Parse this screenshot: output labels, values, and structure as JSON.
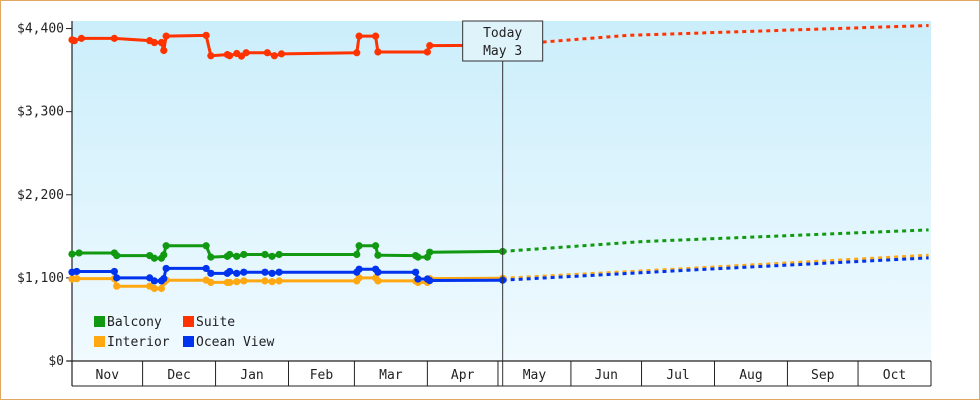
{
  "chart_data": {
    "type": "line",
    "title": "",
    "xlabel": "",
    "ylabel": "",
    "y_ticks": [
      {
        "label": "$0",
        "value": 0
      },
      {
        "label": "$1,100",
        "value": 1100
      },
      {
        "label": "$2,200",
        "value": 2200
      },
      {
        "label": "$3,300",
        "value": 3300
      },
      {
        "label": "$4,400",
        "value": 4400
      }
    ],
    "ylim": [
      0,
      4500
    ],
    "x_domain": [
      "Nov 1",
      "Oct 31"
    ],
    "months": [
      {
        "label": "Nov",
        "start": "Nov 1",
        "end": "Nov 30"
      },
      {
        "label": "Dec",
        "start": "Dec 1",
        "end": "Dec 31"
      },
      {
        "label": "Jan",
        "start": "Jan 1",
        "end": "Jan 31"
      },
      {
        "label": "Feb",
        "start": "Feb 1",
        "end": "Feb 28"
      },
      {
        "label": "Mar",
        "start": "Mar 1",
        "end": "Mar 31"
      },
      {
        "label": "Apr",
        "start": "Apr 1",
        "end": "Apr 30"
      },
      {
        "label": "May",
        "start": "May 1",
        "end": "May 31"
      },
      {
        "label": "Jun",
        "start": "Jun 1",
        "end": "Jun 30"
      },
      {
        "label": "Jul",
        "start": "Jul 1",
        "end": "Jul 31"
      },
      {
        "label": "Aug",
        "start": "Aug 1",
        "end": "Aug 31"
      },
      {
        "label": "Sep",
        "start": "Sep 1",
        "end": "Sep 30"
      },
      {
        "label": "Oct",
        "start": "Oct 1",
        "end": "Oct 31"
      }
    ],
    "today": {
      "line1": "Today",
      "line2": "May 3",
      "date": "May 3"
    },
    "grid": false,
    "legend_position": "bottom-left",
    "series": [
      {
        "name": "Suite",
        "color": "#ff3300",
        "history": [
          [
            "Nov 1",
            4250
          ],
          [
            "Nov 2",
            4240
          ],
          [
            "Nov 5",
            4270
          ],
          [
            "Nov 19",
            4270
          ],
          [
            "Dec 4",
            4240
          ],
          [
            "Dec 6",
            4215
          ],
          [
            "Dec 9",
            4215
          ],
          [
            "Dec 10",
            4110
          ],
          [
            "Dec 11",
            4300
          ],
          [
            "Dec 28",
            4310
          ],
          [
            "Dec 30",
            4040
          ],
          [
            "Jan 6",
            4055
          ],
          [
            "Jan 7",
            4040
          ],
          [
            "Jan 10",
            4070
          ],
          [
            "Jan 12",
            4035
          ],
          [
            "Jan 14",
            4080
          ],
          [
            "Jan 23",
            4080
          ],
          [
            "Jan 26",
            4040
          ],
          [
            "Jan 29",
            4065
          ],
          [
            "Mar 2",
            4080
          ],
          [
            "Mar 3",
            4300
          ],
          [
            "Mar 10",
            4300
          ],
          [
            "Mar 11",
            4090
          ],
          [
            "Apr 1",
            4090
          ],
          [
            "Apr 2",
            4175
          ],
          [
            "May 3",
            4180
          ]
        ],
        "forecast": [
          [
            "May 3",
            4180
          ],
          [
            "Jun 25",
            4310
          ],
          [
            "Oct 31",
            4440
          ]
        ]
      },
      {
        "name": "Balcony",
        "color": "#119911",
        "history": [
          [
            "Nov 1",
            1415
          ],
          [
            "Nov 4",
            1430
          ],
          [
            "Nov 19",
            1430
          ],
          [
            "Nov 20",
            1395
          ],
          [
            "Dec 4",
            1395
          ],
          [
            "Dec 6",
            1360
          ],
          [
            "Dec 9",
            1360
          ],
          [
            "Dec 10",
            1405
          ],
          [
            "Dec 11",
            1525
          ],
          [
            "Dec 28",
            1525
          ],
          [
            "Dec 30",
            1375
          ],
          [
            "Jan 6",
            1385
          ],
          [
            "Jan 7",
            1410
          ],
          [
            "Jan 10",
            1385
          ],
          [
            "Jan 13",
            1410
          ],
          [
            "Jan 22",
            1410
          ],
          [
            "Jan 25",
            1385
          ],
          [
            "Jan 28",
            1410
          ],
          [
            "Mar 2",
            1410
          ],
          [
            "Mar 3",
            1525
          ],
          [
            "Mar 10",
            1525
          ],
          [
            "Mar 11",
            1400
          ],
          [
            "Mar 27",
            1395
          ],
          [
            "Mar 28",
            1375
          ],
          [
            "Apr 1",
            1375
          ],
          [
            "Apr 2",
            1440
          ],
          [
            "May 3",
            1450
          ]
        ],
        "forecast": [
          [
            "May 3",
            1450
          ],
          [
            "Jul 1",
            1580
          ],
          [
            "Oct 31",
            1735
          ]
        ]
      },
      {
        "name": "Interior",
        "color": "#ffa811",
        "history": [
          [
            "Nov 1",
            1085
          ],
          [
            "Nov 3",
            1090
          ],
          [
            "Nov 19",
            1090
          ],
          [
            "Nov 20",
            990
          ],
          [
            "Dec 4",
            990
          ],
          [
            "Dec 6",
            960
          ],
          [
            "Dec 9",
            960
          ],
          [
            "Dec 10",
            1040
          ],
          [
            "Dec 11",
            1070
          ],
          [
            "Dec 28",
            1070
          ],
          [
            "Dec 30",
            1040
          ],
          [
            "Jan 6",
            1040
          ],
          [
            "Jan 7",
            1040
          ],
          [
            "Jan 10",
            1050
          ],
          [
            "Jan 13",
            1060
          ],
          [
            "Jan 22",
            1060
          ],
          [
            "Jan 25",
            1050
          ],
          [
            "Jan 28",
            1060
          ],
          [
            "Mar 2",
            1060
          ],
          [
            "Mar 3",
            1100
          ],
          [
            "Mar 10",
            1100
          ],
          [
            "Mar 11",
            1060
          ],
          [
            "Mar 27",
            1060
          ],
          [
            "Mar 28",
            1040
          ],
          [
            "Apr 1",
            1040
          ],
          [
            "Apr 2",
            1090
          ],
          [
            "May 3",
            1095
          ]
        ],
        "forecast": [
          [
            "May 3",
            1095
          ],
          [
            "Jul 15",
            1215
          ],
          [
            "Oct 31",
            1400
          ]
        ]
      },
      {
        "name": "Ocean View",
        "color": "#0033ee",
        "history": [
          [
            "Nov 1",
            1175
          ],
          [
            "Nov 3",
            1185
          ],
          [
            "Nov 19",
            1185
          ],
          [
            "Nov 20",
            1100
          ],
          [
            "Dec 4",
            1100
          ],
          [
            "Dec 6",
            1060
          ],
          [
            "Dec 9",
            1060
          ],
          [
            "Dec 10",
            1090
          ],
          [
            "Dec 11",
            1225
          ],
          [
            "Dec 28",
            1225
          ],
          [
            "Dec 30",
            1160
          ],
          [
            "Jan 6",
            1160
          ],
          [
            "Jan 7",
            1185
          ],
          [
            "Jan 10",
            1160
          ],
          [
            "Jan 13",
            1175
          ],
          [
            "Jan 22",
            1175
          ],
          [
            "Jan 25",
            1160
          ],
          [
            "Jan 28",
            1175
          ],
          [
            "Mar 2",
            1175
          ],
          [
            "Mar 3",
            1215
          ],
          [
            "Mar 10",
            1215
          ],
          [
            "Mar 11",
            1175
          ],
          [
            "Mar 27",
            1175
          ],
          [
            "Mar 28",
            1085
          ],
          [
            "Apr 1",
            1085
          ],
          [
            "Apr 2",
            1065
          ],
          [
            "May 3",
            1070
          ]
        ],
        "forecast": [
          [
            "May 3",
            1070
          ],
          [
            "Jul 20",
            1200
          ],
          [
            "Oct 31",
            1365
          ]
        ]
      }
    ],
    "legend": [
      {
        "label": "Balcony",
        "color": "#119911"
      },
      {
        "label": "Suite",
        "color": "#ff3300"
      },
      {
        "label": "Interior",
        "color": "#ffa811"
      },
      {
        "label": "Ocean View",
        "color": "#0033ee"
      }
    ]
  }
}
